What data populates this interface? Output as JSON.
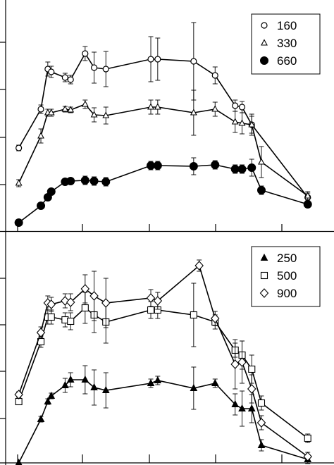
{
  "chart_data": [
    {
      "type": "line",
      "panel": "top",
      "xlim": [
        0,
        475
      ],
      "ylim": [
        0,
        330
      ],
      "grid": false,
      "legend": {
        "placement": "top-right",
        "entries": [
          {
            "label": "160",
            "marker": "open-circle"
          },
          {
            "label": "330",
            "marker": "open-triangle"
          },
          {
            "label": "660",
            "marker": "filled-circle"
          }
        ]
      },
      "series": [
        {
          "name": "160",
          "marker": "open-circle",
          "points": [
            {
              "x": 19,
              "y": 120,
              "err": 4
            },
            {
              "x": 51,
              "y": 175,
              "err": 6
            },
            {
              "x": 61,
              "y": 232,
              "err": 10
            },
            {
              "x": 66,
              "y": 228,
              "err": 8
            },
            {
              "x": 86,
              "y": 220,
              "err": 6
            },
            {
              "x": 94,
              "y": 217,
              "err": 6
            },
            {
              "x": 115,
              "y": 254,
              "err": 10
            },
            {
              "x": 128,
              "y": 234,
              "err": 22
            },
            {
              "x": 145,
              "y": 232,
              "err": 25
            },
            {
              "x": 210,
              "y": 246,
              "err": 32
            },
            {
              "x": 220,
              "y": 246,
              "err": 30
            },
            {
              "x": 272,
              "y": 243,
              "err": 55
            },
            {
              "x": 303,
              "y": 223,
              "err": 12
            },
            {
              "x": 332,
              "y": 180,
              "err": 8
            },
            {
              "x": 342,
              "y": 178,
              "err": 8
            },
            {
              "x": 356,
              "y": 153,
              "err": 15
            },
            {
              "x": 437,
              "y": 50,
              "err": 6
            }
          ]
        },
        {
          "name": "330",
          "marker": "open-triangle",
          "points": [
            {
              "x": 19,
              "y": 70,
              "err": 5
            },
            {
              "x": 51,
              "y": 137,
              "err": 10
            },
            {
              "x": 61,
              "y": 170,
              "err": 5
            },
            {
              "x": 66,
              "y": 170,
              "err": 5
            },
            {
              "x": 86,
              "y": 175,
              "err": 4
            },
            {
              "x": 94,
              "y": 174,
              "err": 4
            },
            {
              "x": 115,
              "y": 182,
              "err": 6
            },
            {
              "x": 128,
              "y": 167,
              "err": 10
            },
            {
              "x": 145,
              "y": 166,
              "err": 12
            },
            {
              "x": 210,
              "y": 178,
              "err": 10
            },
            {
              "x": 220,
              "y": 178,
              "err": 10
            },
            {
              "x": 272,
              "y": 170,
              "err": 32
            },
            {
              "x": 303,
              "y": 175,
              "err": 10
            },
            {
              "x": 332,
              "y": 157,
              "err": 15
            },
            {
              "x": 342,
              "y": 155,
              "err": 15
            },
            {
              "x": 356,
              "y": 153,
              "err": 12
            },
            {
              "x": 370,
              "y": 100,
              "err": 22
            },
            {
              "x": 437,
              "y": 52,
              "err": 6
            }
          ]
        },
        {
          "name": "660",
          "marker": "filled-circle",
          "points": [
            {
              "x": 19,
              "y": 14,
              "err": 3
            },
            {
              "x": 51,
              "y": 38,
              "err": 3
            },
            {
              "x": 61,
              "y": 50,
              "err": 3
            },
            {
              "x": 66,
              "y": 58,
              "err": 3
            },
            {
              "x": 86,
              "y": 72,
              "err": 3
            },
            {
              "x": 94,
              "y": 73,
              "err": 3
            },
            {
              "x": 115,
              "y": 74,
              "err": 6
            },
            {
              "x": 128,
              "y": 73,
              "err": 6
            },
            {
              "x": 145,
              "y": 72,
              "err": 6
            },
            {
              "x": 210,
              "y": 95,
              "err": 6
            },
            {
              "x": 220,
              "y": 95,
              "err": 6
            },
            {
              "x": 272,
              "y": 94,
              "err": 12
            },
            {
              "x": 303,
              "y": 96,
              "err": 6
            },
            {
              "x": 332,
              "y": 90,
              "err": 6
            },
            {
              "x": 342,
              "y": 90,
              "err": 6
            },
            {
              "x": 356,
              "y": 92,
              "err": 12
            },
            {
              "x": 370,
              "y": 60,
              "err": 6
            },
            {
              "x": 437,
              "y": 40,
              "err": 3
            }
          ]
        }
      ]
    },
    {
      "type": "line",
      "panel": "bottom",
      "xlim": [
        0,
        475
      ],
      "ylim": [
        0,
        330
      ],
      "grid": false,
      "legend": {
        "placement": "top-right",
        "entries": [
          {
            "label": "250",
            "marker": "filled-triangle"
          },
          {
            "label": "500",
            "marker": "open-square"
          },
          {
            "label": "900",
            "marker": "open-diamond"
          }
        ]
      },
      "series": [
        {
          "name": "250",
          "marker": "filled-triangle",
          "points": [
            {
              "x": 19,
              "y": 3,
              "err": 0
            },
            {
              "x": 51,
              "y": 65,
              "err": 4
            },
            {
              "x": 61,
              "y": 90,
              "err": 4
            },
            {
              "x": 66,
              "y": 98,
              "err": 4
            },
            {
              "x": 86,
              "y": 113,
              "err": 10
            },
            {
              "x": 94,
              "y": 121,
              "err": 10
            },
            {
              "x": 115,
              "y": 121,
              "err": 20
            },
            {
              "x": 128,
              "y": 110,
              "err": 25
            },
            {
              "x": 145,
              "y": 106,
              "err": 25
            },
            {
              "x": 210,
              "y": 116,
              "err": 6
            },
            {
              "x": 220,
              "y": 120,
              "err": 6
            },
            {
              "x": 272,
              "y": 109,
              "err": 30
            },
            {
              "x": 303,
              "y": 116,
              "err": 6
            },
            {
              "x": 332,
              "y": 86,
              "err": 15
            },
            {
              "x": 342,
              "y": 80,
              "err": 25
            },
            {
              "x": 356,
              "y": 80,
              "err": 20
            },
            {
              "x": 370,
              "y": 28,
              "err": 8
            },
            {
              "x": 437,
              "y": 8,
              "err": 6
            }
          ]
        },
        {
          "name": "500",
          "marker": "open-square",
          "points": [
            {
              "x": 19,
              "y": 90,
              "err": 4
            },
            {
              "x": 51,
              "y": 175,
              "err": 8
            },
            {
              "x": 61,
              "y": 210,
              "err": 10
            },
            {
              "x": 66,
              "y": 210,
              "err": 10
            },
            {
              "x": 86,
              "y": 206,
              "err": 10
            },
            {
              "x": 94,
              "y": 204,
              "err": 12
            },
            {
              "x": 115,
              "y": 223,
              "err": 22
            },
            {
              "x": 128,
              "y": 213,
              "err": 25
            },
            {
              "x": 145,
              "y": 203,
              "err": 30
            },
            {
              "x": 210,
              "y": 220,
              "err": 12
            },
            {
              "x": 220,
              "y": 220,
              "err": 12
            },
            {
              "x": 272,
              "y": 213,
              "err": 45
            },
            {
              "x": 303,
              "y": 203,
              "err": 10
            },
            {
              "x": 332,
              "y": 163,
              "err": 10
            },
            {
              "x": 342,
              "y": 156,
              "err": 20
            },
            {
              "x": 356,
              "y": 136,
              "err": 20
            },
            {
              "x": 370,
              "y": 88,
              "err": 10
            },
            {
              "x": 437,
              "y": 38,
              "err": 6
            }
          ]
        },
        {
          "name": "900",
          "marker": "open-diamond",
          "points": [
            {
              "x": 19,
              "y": 100,
              "err": 4
            },
            {
              "x": 51,
              "y": 188,
              "err": 8
            },
            {
              "x": 61,
              "y": 230,
              "err": 10
            },
            {
              "x": 66,
              "y": 228,
              "err": 10
            },
            {
              "x": 86,
              "y": 233,
              "err": 10
            },
            {
              "x": 94,
              "y": 231,
              "err": 12
            },
            {
              "x": 115,
              "y": 250,
              "err": 20
            },
            {
              "x": 128,
              "y": 240,
              "err": 35
            },
            {
              "x": 145,
              "y": 230,
              "err": 35
            },
            {
              "x": 210,
              "y": 237,
              "err": 12
            },
            {
              "x": 220,
              "y": 233,
              "err": 12
            },
            {
              "x": 280,
              "y": 283,
              "err": 8
            },
            {
              "x": 303,
              "y": 208,
              "err": 10
            },
            {
              "x": 332,
              "y": 143,
              "err": 35
            },
            {
              "x": 342,
              "y": 146,
              "err": 30
            },
            {
              "x": 356,
              "y": 108,
              "err": 20
            },
            {
              "x": 370,
              "y": 60,
              "err": 10
            },
            {
              "x": 437,
              "y": 12,
              "err": 6
            }
          ]
        }
      ]
    }
  ]
}
